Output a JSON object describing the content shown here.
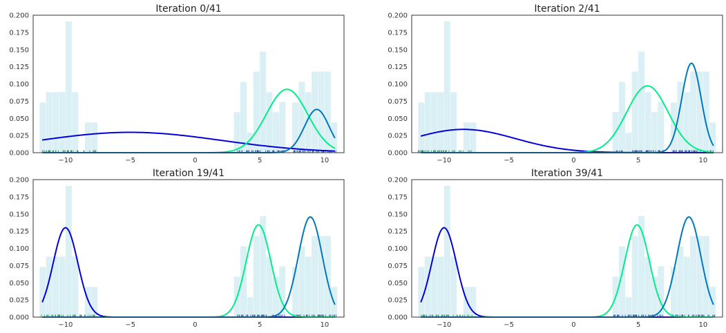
{
  "chart_data": [
    {
      "type": "histogram+line",
      "title": "Iteration 0/41",
      "xlim": [
        -12.5,
        11.5
      ],
      "ylim": [
        0,
        0.2
      ],
      "x_ticks": [
        -10,
        -5,
        0,
        5,
        10
      ],
      "x_tick_labels": [
        "−10",
        "−5",
        "0",
        "5",
        "10"
      ],
      "y_ticks": [
        0,
        0.025,
        0.05,
        0.075,
        0.1,
        0.125,
        0.15,
        0.175,
        0.2
      ],
      "y_tick_labels": [
        "0.000",
        "0.025",
        "0.050",
        "0.075",
        "0.100",
        "0.125",
        "0.150",
        "0.175",
        "0.200"
      ],
      "histogram": {
        "color": "#daf0f5",
        "bins": [
          {
            "x0": -12.0,
            "x1": -11.5,
            "value": 0.073
          },
          {
            "x0": -11.5,
            "x1": -11.0,
            "value": 0.088
          },
          {
            "x0": -11.0,
            "x1": -10.5,
            "value": 0.088
          },
          {
            "x0": -10.5,
            "x1": -10.0,
            "value": 0.088
          },
          {
            "x0": -10.0,
            "x1": -9.5,
            "value": 0.191
          },
          {
            "x0": -9.5,
            "x1": -9.0,
            "value": 0.088
          },
          {
            "x0": -8.5,
            "x1": -8.0,
            "value": 0.044
          },
          {
            "x0": -8.0,
            "x1": -7.5,
            "value": 0.044
          },
          {
            "x0": 3.0,
            "x1": 3.5,
            "value": 0.059
          },
          {
            "x0": 3.5,
            "x1": 4.0,
            "value": 0.103
          },
          {
            "x0": 4.0,
            "x1": 4.5,
            "value": 0.029
          },
          {
            "x0": 4.5,
            "x1": 5.0,
            "value": 0.118
          },
          {
            "x0": 5.0,
            "x1": 5.5,
            "value": 0.147
          },
          {
            "x0": 5.5,
            "x1": 6.0,
            "value": 0.088
          },
          {
            "x0": 6.0,
            "x1": 6.5,
            "value": 0.059
          },
          {
            "x0": 6.5,
            "x1": 7.0,
            "value": 0.074
          },
          {
            "x0": 7.5,
            "x1": 8.0,
            "value": 0.073
          },
          {
            "x0": 8.0,
            "x1": 8.5,
            "value": 0.103
          },
          {
            "x0": 8.5,
            "x1": 9.0,
            "value": 0.088
          },
          {
            "x0": 9.0,
            "x1": 9.5,
            "value": 0.118
          },
          {
            "x0": 9.5,
            "x1": 10.0,
            "value": 0.118
          },
          {
            "x0": 10.0,
            "x1": 10.5,
            "value": 0.118
          },
          {
            "x0": 10.5,
            "x1": 11.0,
            "value": 0.044
          }
        ]
      },
      "series": [
        {
          "color": "#0000dd",
          "mean": -5.0,
          "std": 7.0,
          "weight": 0.52
        },
        {
          "color": "#00ee88",
          "mean": 7.1,
          "std": 1.6,
          "weight": 0.37
        },
        {
          "color": "#0077bb",
          "mean": 9.4,
          "std": 0.95,
          "weight": 0.15
        }
      ]
    },
    {
      "type": "histogram+line",
      "title": "Iteration 2/41",
      "xlim": [
        -12.5,
        11.5
      ],
      "ylim": [
        0,
        0.2
      ],
      "x_ticks": [
        -10,
        -5,
        0,
        5,
        10
      ],
      "x_tick_labels": [
        "−10",
        "−5",
        "0",
        "5",
        "10"
      ],
      "y_ticks": [
        0,
        0.025,
        0.05,
        0.075,
        0.1,
        0.125,
        0.15,
        0.175,
        0.2
      ],
      "y_tick_labels": [
        "0.000",
        "0.025",
        "0.050",
        "0.075",
        "0.100",
        "0.125",
        "0.150",
        "0.175",
        "0.200"
      ],
      "histogram": {
        "color": "#daf0f5",
        "bins": [
          {
            "x0": -12.0,
            "x1": -11.5,
            "value": 0.073
          },
          {
            "x0": -11.5,
            "x1": -11.0,
            "value": 0.088
          },
          {
            "x0": -11.0,
            "x1": -10.5,
            "value": 0.088
          },
          {
            "x0": -10.5,
            "x1": -10.0,
            "value": 0.088
          },
          {
            "x0": -10.0,
            "x1": -9.5,
            "value": 0.191
          },
          {
            "x0": -9.5,
            "x1": -9.0,
            "value": 0.088
          },
          {
            "x0": -8.5,
            "x1": -8.0,
            "value": 0.044
          },
          {
            "x0": -8.0,
            "x1": -7.5,
            "value": 0.044
          },
          {
            "x0": 3.0,
            "x1": 3.5,
            "value": 0.059
          },
          {
            "x0": 3.5,
            "x1": 4.0,
            "value": 0.103
          },
          {
            "x0": 4.0,
            "x1": 4.5,
            "value": 0.029
          },
          {
            "x0": 4.5,
            "x1": 5.0,
            "value": 0.118
          },
          {
            "x0": 5.0,
            "x1": 5.5,
            "value": 0.147
          },
          {
            "x0": 5.5,
            "x1": 6.0,
            "value": 0.088
          },
          {
            "x0": 6.0,
            "x1": 6.5,
            "value": 0.059
          },
          {
            "x0": 6.5,
            "x1": 7.0,
            "value": 0.074
          },
          {
            "x0": 7.5,
            "x1": 8.0,
            "value": 0.073
          },
          {
            "x0": 8.0,
            "x1": 8.5,
            "value": 0.103
          },
          {
            "x0": 8.5,
            "x1": 9.0,
            "value": 0.088
          },
          {
            "x0": 9.0,
            "x1": 9.5,
            "value": 0.118
          },
          {
            "x0": 9.5,
            "x1": 10.0,
            "value": 0.118
          },
          {
            "x0": 10.0,
            "x1": 10.5,
            "value": 0.118
          },
          {
            "x0": 10.5,
            "x1": 11.0,
            "value": 0.044
          }
        ]
      },
      "series": [
        {
          "color": "#0000dd",
          "mean": -8.5,
          "std": 4.0,
          "weight": 0.34
        },
        {
          "color": "#00ee88",
          "mean": 5.7,
          "std": 1.6,
          "weight": 0.39
        },
        {
          "color": "#0077bb",
          "mean": 9.1,
          "std": 0.75,
          "weight": 0.245
        }
      ]
    },
    {
      "type": "histogram+line",
      "title": "Iteration 19/41",
      "xlim": [
        -12.5,
        11.5
      ],
      "ylim": [
        0,
        0.2
      ],
      "x_ticks": [
        -10,
        -5,
        0,
        5,
        10
      ],
      "x_tick_labels": [
        "−10",
        "−5",
        "0",
        "5",
        "10"
      ],
      "y_ticks": [
        0,
        0.025,
        0.05,
        0.075,
        0.1,
        0.125,
        0.15,
        0.175,
        0.2
      ],
      "y_tick_labels": [
        "0.000",
        "0.025",
        "0.050",
        "0.075",
        "0.100",
        "0.125",
        "0.150",
        "0.175",
        "0.200"
      ],
      "histogram": {
        "color": "#daf0f5",
        "bins": [
          {
            "x0": -12.0,
            "x1": -11.5,
            "value": 0.073
          },
          {
            "x0": -11.5,
            "x1": -11.0,
            "value": 0.088
          },
          {
            "x0": -11.0,
            "x1": -10.5,
            "value": 0.088
          },
          {
            "x0": -10.5,
            "x1": -10.0,
            "value": 0.088
          },
          {
            "x0": -10.0,
            "x1": -9.5,
            "value": 0.191
          },
          {
            "x0": -9.5,
            "x1": -9.0,
            "value": 0.088
          },
          {
            "x0": -8.5,
            "x1": -8.0,
            "value": 0.044
          },
          {
            "x0": -8.0,
            "x1": -7.5,
            "value": 0.044
          },
          {
            "x0": 3.0,
            "x1": 3.5,
            "value": 0.059
          },
          {
            "x0": 3.5,
            "x1": 4.0,
            "value": 0.103
          },
          {
            "x0": 4.0,
            "x1": 4.5,
            "value": 0.029
          },
          {
            "x0": 4.5,
            "x1": 5.0,
            "value": 0.118
          },
          {
            "x0": 5.0,
            "x1": 5.5,
            "value": 0.147
          },
          {
            "x0": 5.5,
            "x1": 6.0,
            "value": 0.088
          },
          {
            "x0": 6.0,
            "x1": 6.5,
            "value": 0.059
          },
          {
            "x0": 6.5,
            "x1": 7.0,
            "value": 0.074
          },
          {
            "x0": 7.5,
            "x1": 8.0,
            "value": 0.073
          },
          {
            "x0": 8.0,
            "x1": 8.5,
            "value": 0.103
          },
          {
            "x0": 8.5,
            "x1": 9.0,
            "value": 0.088
          },
          {
            "x0": 9.0,
            "x1": 9.5,
            "value": 0.118
          },
          {
            "x0": 9.5,
            "x1": 10.0,
            "value": 0.118
          },
          {
            "x0": 10.0,
            "x1": 10.5,
            "value": 0.118
          },
          {
            "x0": 10.5,
            "x1": 11.0,
            "value": 0.044
          }
        ]
      },
      "series": [
        {
          "color": "#0000dd",
          "mean": -10.0,
          "std": 0.95,
          "weight": 0.31
        },
        {
          "color": "#00ee88",
          "mean": 4.9,
          "std": 0.95,
          "weight": 0.32
        },
        {
          "color": "#0077bb",
          "mean": 8.9,
          "std": 0.93,
          "weight": 0.34
        }
      ]
    },
    {
      "type": "histogram+line",
      "title": "Iteration 39/41",
      "xlim": [
        -12.5,
        11.5
      ],
      "ylim": [
        0,
        0.2
      ],
      "x_ticks": [
        -10,
        -5,
        0,
        5,
        10
      ],
      "x_tick_labels": [
        "−10",
        "−5",
        "0",
        "5",
        "10"
      ],
      "y_ticks": [
        0,
        0.025,
        0.05,
        0.075,
        0.1,
        0.125,
        0.15,
        0.175,
        0.2
      ],
      "y_tick_labels": [
        "0.000",
        "0.025",
        "0.050",
        "0.075",
        "0.100",
        "0.125",
        "0.150",
        "0.175",
        "0.200"
      ],
      "histogram": {
        "color": "#daf0f5",
        "bins": [
          {
            "x0": -12.0,
            "x1": -11.5,
            "value": 0.073
          },
          {
            "x0": -11.5,
            "x1": -11.0,
            "value": 0.088
          },
          {
            "x0": -11.0,
            "x1": -10.5,
            "value": 0.088
          },
          {
            "x0": -10.5,
            "x1": -10.0,
            "value": 0.088
          },
          {
            "x0": -10.0,
            "x1": -9.5,
            "value": 0.191
          },
          {
            "x0": -9.5,
            "x1": -9.0,
            "value": 0.088
          },
          {
            "x0": -8.5,
            "x1": -8.0,
            "value": 0.044
          },
          {
            "x0": -8.0,
            "x1": -7.5,
            "value": 0.044
          },
          {
            "x0": 3.0,
            "x1": 3.5,
            "value": 0.059
          },
          {
            "x0": 3.5,
            "x1": 4.0,
            "value": 0.103
          },
          {
            "x0": 4.0,
            "x1": 4.5,
            "value": 0.029
          },
          {
            "x0": 4.5,
            "x1": 5.0,
            "value": 0.118
          },
          {
            "x0": 5.0,
            "x1": 5.5,
            "value": 0.147
          },
          {
            "x0": 5.5,
            "x1": 6.0,
            "value": 0.088
          },
          {
            "x0": 6.0,
            "x1": 6.5,
            "value": 0.059
          },
          {
            "x0": 6.5,
            "x1": 7.0,
            "value": 0.074
          },
          {
            "x0": 7.5,
            "x1": 8.0,
            "value": 0.073
          },
          {
            "x0": 8.0,
            "x1": 8.5,
            "value": 0.103
          },
          {
            "x0": 8.5,
            "x1": 9.0,
            "value": 0.088
          },
          {
            "x0": 9.0,
            "x1": 9.5,
            "value": 0.118
          },
          {
            "x0": 9.5,
            "x1": 10.0,
            "value": 0.118
          },
          {
            "x0": 10.0,
            "x1": 10.5,
            "value": 0.118
          },
          {
            "x0": 10.5,
            "x1": 11.0,
            "value": 0.044
          }
        ]
      },
      "series": [
        {
          "color": "#0000dd",
          "mean": -10.0,
          "std": 0.95,
          "weight": 0.31
        },
        {
          "color": "#00ee88",
          "mean": 4.9,
          "std": 0.95,
          "weight": 0.32
        },
        {
          "color": "#0077bb",
          "mean": 8.9,
          "std": 0.93,
          "weight": 0.34
        }
      ]
    }
  ]
}
